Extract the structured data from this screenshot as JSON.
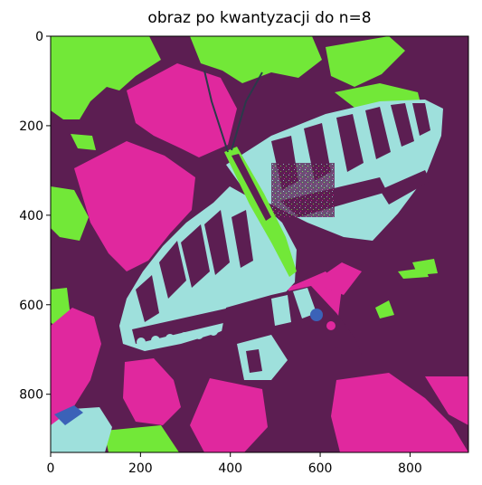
{
  "figure": {
    "title": "obraz po kwantyzacji do n=8"
  },
  "image": {
    "description_colors": {
      "background": "#5c1e52",
      "magenta": "#e0289e",
      "green": "#72e838",
      "cyan": "#9ee0dc",
      "blue": "#3b62b8",
      "dark": "#2a3a4a"
    },
    "pixel_extent": {
      "width": 930,
      "height": 930
    }
  },
  "axes": {
    "x": {
      "ticks": [
        "0",
        "200",
        "400",
        "600",
        "800"
      ],
      "tick_values": [
        0,
        200,
        400,
        600,
        800
      ],
      "range": [
        0,
        930
      ]
    },
    "y": {
      "ticks": [
        "0",
        "200",
        "400",
        "600",
        "800"
      ],
      "tick_values": [
        0,
        200,
        400,
        600,
        800
      ],
      "range": [
        0,
        930
      ]
    }
  }
}
